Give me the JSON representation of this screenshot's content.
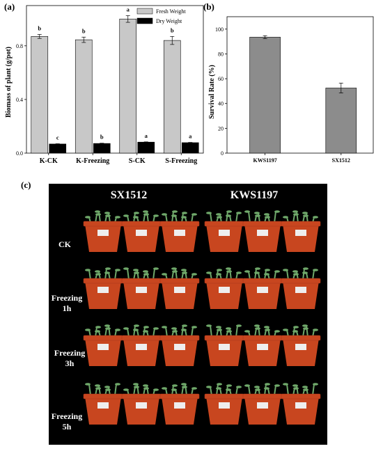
{
  "chart_data": [
    {
      "panel": "(a)",
      "type": "bar",
      "ylabel": "Biomass of plant (g/pot)",
      "categories": [
        "K-CK",
        "K-Freezing",
        "S-CK",
        "S-Freezing"
      ],
      "ylim": [
        0,
        1.1
      ],
      "yticks": [
        "0.0",
        "0.4",
        "0.8"
      ],
      "ytick_values": [
        0,
        0.4,
        0.8
      ],
      "legend": "top-right",
      "series": [
        {
          "name": "Fresh Weight",
          "color": "#c8c8c8",
          "values": [
            0.87,
            0.845,
            1.0,
            0.84
          ],
          "errors": [
            0.015,
            0.02,
            0.025,
            0.03
          ],
          "labels": [
            "b",
            "b",
            "a",
            "b"
          ]
        },
        {
          "name": "Dry Weight",
          "color": "#000000",
          "values": [
            0.068,
            0.072,
            0.082,
            0.078
          ],
          "errors": [
            0.002,
            0.002,
            0.002,
            0.002
          ],
          "labels": [
            "c",
            "b",
            "a",
            "a"
          ]
        }
      ]
    },
    {
      "panel": "(b)",
      "type": "bar",
      "ylabel": "Survival Rate (%)",
      "categories": [
        "KWS1197",
        "SX1512"
      ],
      "ylim": [
        0,
        110
      ],
      "yticks": [
        "0",
        "20",
        "40",
        "60",
        "80",
        "100"
      ],
      "ytick_values": [
        0,
        20,
        40,
        60,
        80,
        100
      ],
      "series": [
        {
          "name": "",
          "color": "#8c8c8c",
          "values": [
            93.5,
            52.5
          ],
          "errors": [
            1.2,
            4.0
          ]
        }
      ]
    }
  ],
  "photo": {
    "panel": "(c)",
    "column_headers": [
      "SX1512",
      "KWS1197"
    ],
    "rows": [
      {
        "line1": "CK",
        "line2": ""
      },
      {
        "line1": "Freezing",
        "line2": "1h"
      },
      {
        "line1": "Freezing",
        "line2": "3h"
      },
      {
        "line1": "Freezing",
        "line2": "5h"
      }
    ],
    "pot_color": "#c8461f",
    "leaf_color": "#6fa86a"
  }
}
